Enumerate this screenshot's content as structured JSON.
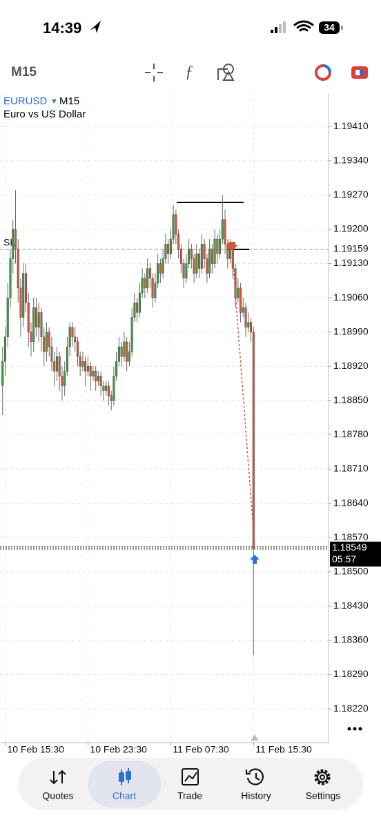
{
  "status_bar": {
    "time": "14:39",
    "battery": "34"
  },
  "toolbar": {
    "timeframe": "M15"
  },
  "chart_data": {
    "type": "candlestick",
    "symbol": "EURUSD",
    "timeframe": "M15",
    "description": "Euro vs US Dollar",
    "ohlc": [
      [
        1.1888,
        1.1896,
        1.1882,
        1.1893
      ],
      [
        1.1893,
        1.19,
        1.189,
        1.1898
      ],
      [
        1.1898,
        1.1909,
        1.1896,
        1.1906
      ],
      [
        1.1906,
        1.1916,
        1.1904,
        1.1914
      ],
      [
        1.1914,
        1.1922,
        1.1911,
        1.192
      ],
      [
        1.192,
        1.1928,
        1.1913,
        1.1916
      ],
      [
        1.1916,
        1.1918,
        1.1905,
        1.1908
      ],
      [
        1.1908,
        1.191,
        1.1898,
        1.1902
      ],
      [
        1.1902,
        1.1913,
        1.19,
        1.1911
      ],
      [
        1.1911,
        1.1913,
        1.1903,
        1.1905
      ],
      [
        1.1905,
        1.1907,
        1.1896,
        1.1899
      ],
      [
        1.1899,
        1.1901,
        1.1894,
        1.1897
      ],
      [
        1.1897,
        1.1906,
        1.1895,
        1.1904
      ],
      [
        1.1904,
        1.1906,
        1.1898,
        1.19
      ],
      [
        1.19,
        1.1905,
        1.1897,
        1.1903
      ],
      [
        1.1903,
        1.1904,
        1.1895,
        1.1898
      ],
      [
        1.1898,
        1.19,
        1.1892,
        1.1895
      ],
      [
        1.1895,
        1.1901,
        1.1893,
        1.1899
      ],
      [
        1.1899,
        1.19,
        1.1894,
        1.1896
      ],
      [
        1.1896,
        1.1898,
        1.1891,
        1.1893
      ],
      [
        1.1893,
        1.1895,
        1.1888,
        1.1891
      ],
      [
        1.1891,
        1.1896,
        1.1889,
        1.1894
      ],
      [
        1.1894,
        1.1895,
        1.1887,
        1.189
      ],
      [
        1.189,
        1.1892,
        1.1885,
        1.1888
      ],
      [
        1.1888,
        1.1893,
        1.1886,
        1.1891
      ],
      [
        1.1891,
        1.1898,
        1.189,
        1.1896
      ],
      [
        1.1896,
        1.1901,
        1.1894,
        1.19
      ],
      [
        1.19,
        1.1901,
        1.1896,
        1.1898
      ],
      [
        1.1898,
        1.19,
        1.1895,
        1.1897
      ],
      [
        1.1897,
        1.1898,
        1.1892,
        1.1894
      ],
      [
        1.1894,
        1.1895,
        1.189,
        1.1892
      ],
      [
        1.1892,
        1.1895,
        1.1891,
        1.1893
      ],
      [
        1.1893,
        1.1894,
        1.1888,
        1.1891
      ],
      [
        1.1891,
        1.1894,
        1.189,
        1.1892
      ],
      [
        1.1892,
        1.1893,
        1.1887,
        1.189
      ],
      [
        1.189,
        1.1892,
        1.1889,
        1.1891
      ],
      [
        1.1891,
        1.1892,
        1.1887,
        1.1889
      ],
      [
        1.1889,
        1.1891,
        1.1888,
        1.189
      ],
      [
        1.189,
        1.1891,
        1.1886,
        1.1888
      ],
      [
        1.1888,
        1.1889,
        1.1885,
        1.1887
      ],
      [
        1.1887,
        1.1889,
        1.1886,
        1.1888
      ],
      [
        1.1888,
        1.1889,
        1.1884,
        1.1886
      ],
      [
        1.1886,
        1.1887,
        1.1883,
        1.1885
      ],
      [
        1.1885,
        1.1892,
        1.1884,
        1.189
      ],
      [
        1.189,
        1.1895,
        1.1889,
        1.1893
      ],
      [
        1.1893,
        1.1898,
        1.1892,
        1.1896
      ],
      [
        1.1896,
        1.1897,
        1.1892,
        1.1894
      ],
      [
        1.1894,
        1.1899,
        1.1893,
        1.1897
      ],
      [
        1.1897,
        1.1898,
        1.1891,
        1.1893
      ],
      [
        1.1893,
        1.1897,
        1.1892,
        1.1895
      ],
      [
        1.1895,
        1.1904,
        1.1894,
        1.1902
      ],
      [
        1.1902,
        1.1907,
        1.1901,
        1.1905
      ],
      [
        1.1905,
        1.1906,
        1.1901,
        1.1903
      ],
      [
        1.1903,
        1.1909,
        1.1902,
        1.1907
      ],
      [
        1.1907,
        1.1912,
        1.1906,
        1.191
      ],
      [
        1.191,
        1.1911,
        1.1906,
        1.1908
      ],
      [
        1.1908,
        1.1914,
        1.1907,
        1.1912
      ],
      [
        1.1912,
        1.1913,
        1.1908,
        1.191
      ],
      [
        1.191,
        1.1911,
        1.1904,
        1.1906
      ],
      [
        1.1906,
        1.1911,
        1.1905,
        1.1909
      ],
      [
        1.1909,
        1.1915,
        1.1908,
        1.1913
      ],
      [
        1.1913,
        1.1914,
        1.1909,
        1.1911
      ],
      [
        1.1911,
        1.1916,
        1.191,
        1.1914
      ],
      [
        1.1914,
        1.1919,
        1.1913,
        1.1917
      ],
      [
        1.1917,
        1.1918,
        1.1913,
        1.1915
      ],
      [
        1.1915,
        1.192,
        1.1914,
        1.1918
      ],
      [
        1.1918,
        1.1925,
        1.1917,
        1.1923
      ],
      [
        1.1923,
        1.1924,
        1.1917,
        1.1919
      ],
      [
        1.1919,
        1.192,
        1.1914,
        1.1916
      ],
      [
        1.1916,
        1.1917,
        1.1911,
        1.1913
      ],
      [
        1.1913,
        1.1914,
        1.1908,
        1.191
      ],
      [
        1.191,
        1.1915,
        1.1909,
        1.1913
      ],
      [
        1.1913,
        1.1918,
        1.1912,
        1.1916
      ],
      [
        1.1916,
        1.1917,
        1.1912,
        1.1914
      ],
      [
        1.1914,
        1.1915,
        1.1909,
        1.1911
      ],
      [
        1.1911,
        1.1917,
        1.191,
        1.1915
      ],
      [
        1.1915,
        1.1916,
        1.191,
        1.1912
      ],
      [
        1.1912,
        1.1919,
        1.1911,
        1.1917
      ],
      [
        1.1917,
        1.1918,
        1.1912,
        1.1914
      ],
      [
        1.1914,
        1.1915,
        1.1909,
        1.1911
      ],
      [
        1.1911,
        1.1918,
        1.191,
        1.1916
      ],
      [
        1.1916,
        1.1917,
        1.1911,
        1.1913
      ],
      [
        1.1913,
        1.192,
        1.1912,
        1.1918
      ],
      [
        1.1918,
        1.1919,
        1.1913,
        1.1915
      ],
      [
        1.1915,
        1.192,
        1.1914,
        1.1918
      ],
      [
        1.1918,
        1.1927,
        1.1917,
        1.1922
      ],
      [
        1.1922,
        1.1924,
        1.1915,
        1.1917
      ],
      [
        1.1917,
        1.1918,
        1.1912,
        1.1914
      ],
      [
        1.1914,
        1.1918,
        1.1913,
        1.1916
      ],
      [
        1.1916,
        1.1917,
        1.191,
        1.1912
      ],
      [
        1.1912,
        1.1913,
        1.1904,
        1.1906
      ],
      [
        1.1906,
        1.191,
        1.1905,
        1.1908
      ],
      [
        1.1908,
        1.1909,
        1.1901,
        1.1903
      ],
      [
        1.1903,
        1.1906,
        1.1902,
        1.1904
      ],
      [
        1.1904,
        1.1905,
        1.1898,
        1.19
      ],
      [
        1.19,
        1.1903,
        1.1899,
        1.1901
      ],
      [
        1.1901,
        1.1902,
        1.1897,
        1.1899
      ],
      [
        1.1899,
        1.19,
        1.1833,
        1.18549
      ]
    ],
    "xlim": [
      -1,
      126
    ],
    "xticks": [
      {
        "value": 1,
        "label": "10 Feb 15:30"
      },
      {
        "value": 33,
        "label": "10 Feb 23:30"
      },
      {
        "value": 65,
        "label": "11 Feb 07:30"
      },
      {
        "value": 97,
        "label": "11 Feb 15:30"
      }
    ],
    "ylim": [
      1.18151,
      1.19478
    ],
    "yticks": [
      {
        "value": 1.1941,
        "label": "1.19410"
      },
      {
        "value": 1.1934,
        "label": "1.19340"
      },
      {
        "value": 1.1927,
        "label": "1.19270"
      },
      {
        "value": 1.192,
        "label": "1.19200"
      },
      {
        "value": 1.1913,
        "label": "1.19130"
      },
      {
        "value": 1.1906,
        "label": "1.19060"
      },
      {
        "value": 1.1899,
        "label": "1.18990"
      },
      {
        "value": 1.1892,
        "label": "1.18920"
      },
      {
        "value": 1.1885,
        "label": "1.18850"
      },
      {
        "value": 1.1878,
        "label": "1.18780"
      },
      {
        "value": 1.1871,
        "label": "1.18710"
      },
      {
        "value": 1.1864,
        "label": "1.18640"
      },
      {
        "value": 1.1857,
        "label": "1.18570"
      },
      {
        "value": 1.185,
        "label": "1.18500"
      },
      {
        "value": 1.1843,
        "label": "1.18430"
      },
      {
        "value": 1.1836,
        "label": "1.18360"
      },
      {
        "value": 1.1829,
        "label": "1.18290"
      },
      {
        "value": 1.1822,
        "label": "1.18220"
      }
    ],
    "grid": true,
    "up_color": "#3f9b3f",
    "down_color": "#d4553c",
    "levels": [
      1.19255
    ],
    "stop_loss": {
      "value": 1.19159,
      "label": "1.19159",
      "text": "SL"
    },
    "last_price": {
      "value": 1.18549,
      "label": "1.18549"
    },
    "countdown": "05:57"
  },
  "tabs": [
    "Quotes",
    "Chart",
    "Trade",
    "History",
    "Settings"
  ],
  "active_tab": 1
}
